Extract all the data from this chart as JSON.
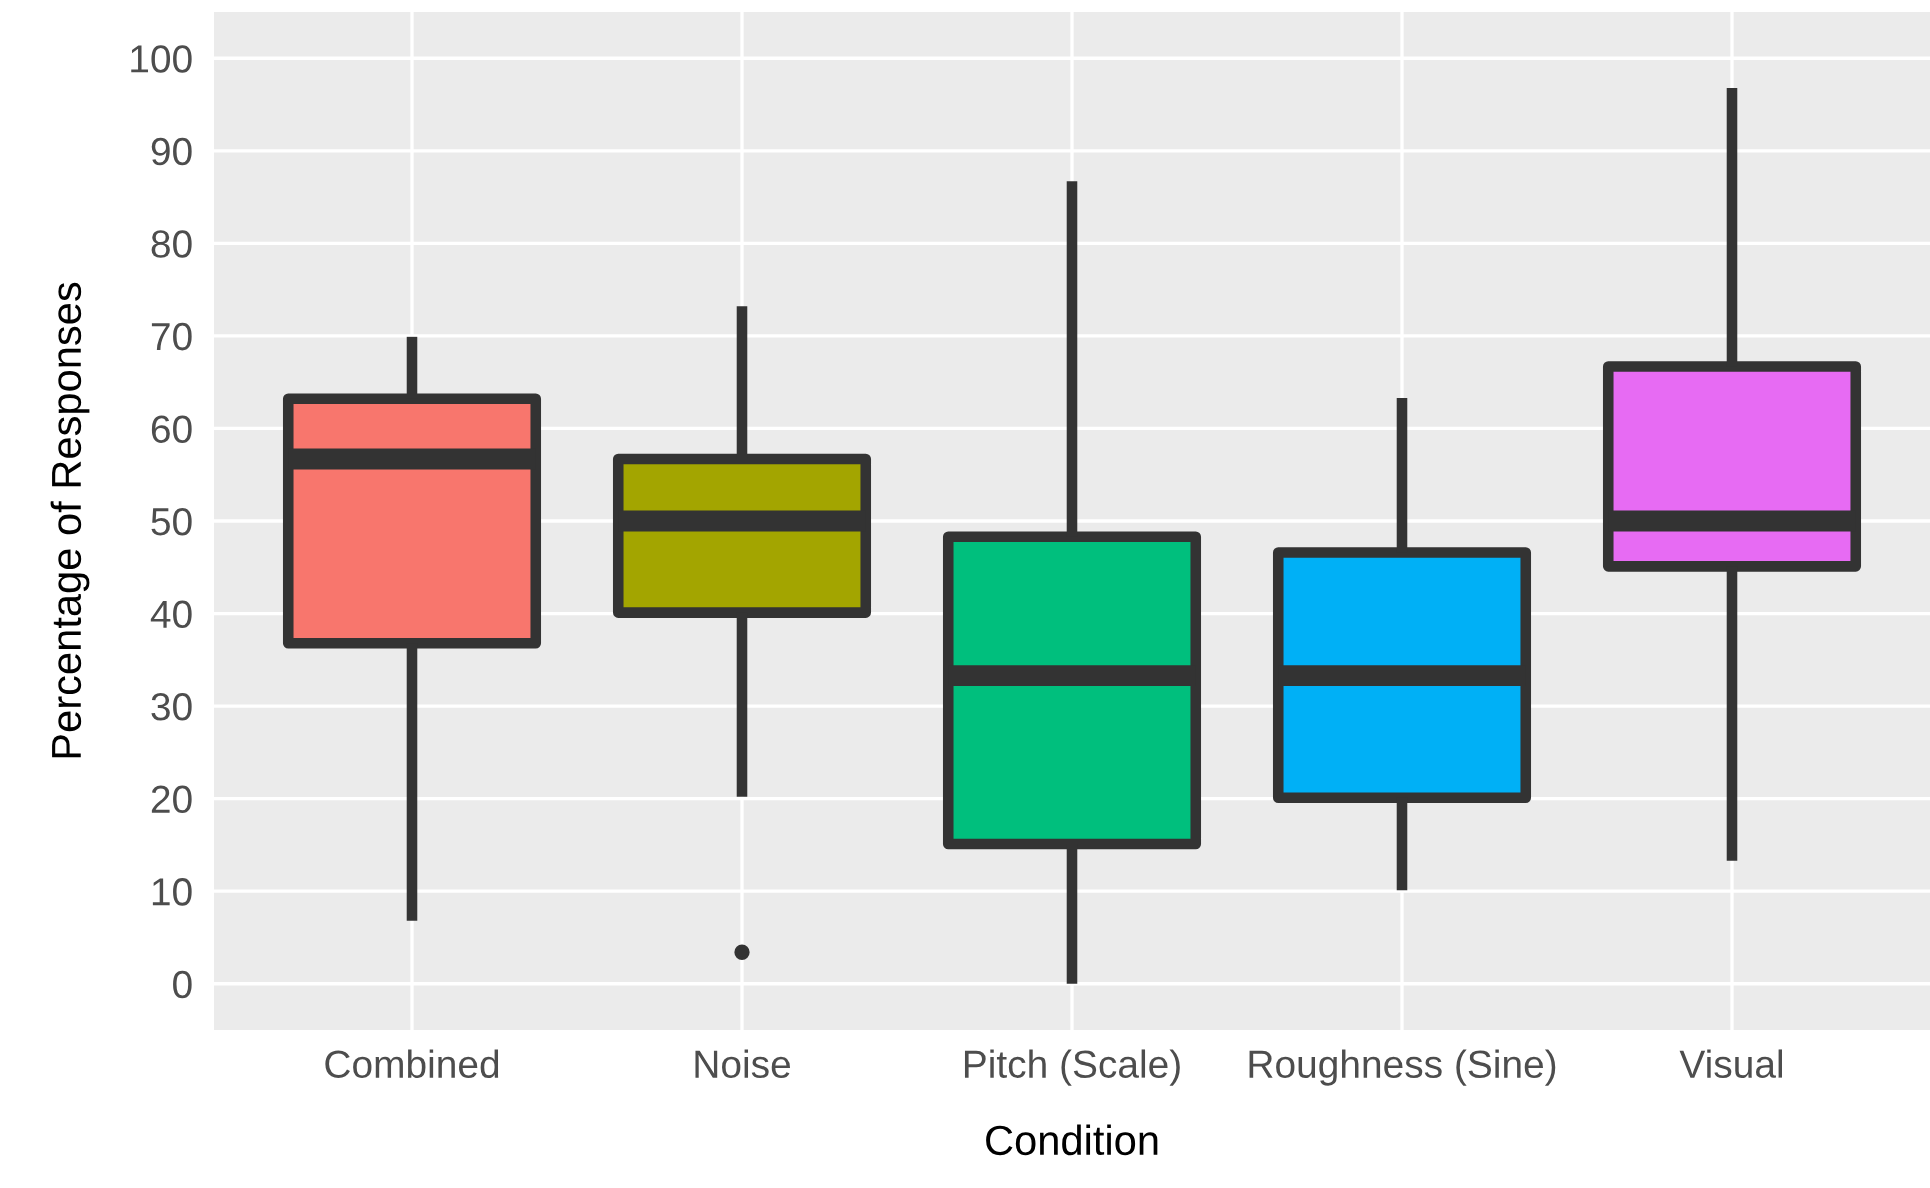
{
  "chart_data": {
    "type": "box",
    "xlabel": "Condition",
    "ylabel": "Percentage of Responses",
    "categories": [
      "Combined",
      "Noise",
      "Pitch (Scale)",
      "Roughness (Sine)",
      "Visual"
    ],
    "colors": [
      "#f8766d",
      "#a3a500",
      "#00bf7d",
      "#00b0f6",
      "#e76bf3"
    ],
    "boxes": [
      {
        "low": 6.8,
        "q1": 36.8,
        "median": 56.7,
        "q3": 63.2,
        "high": 69.9
      },
      {
        "low": 20.2,
        "q1": 40.1,
        "median": 50.0,
        "q3": 56.7,
        "high": 73.2,
        "outliers": [
          3.4
        ]
      },
      {
        "low": 0,
        "q1": 15.1,
        "median": 33.3,
        "q3": 48.3,
        "high": 86.7
      },
      {
        "low": 10.1,
        "q1": 20.1,
        "median": 33.3,
        "q3": 46.6,
        "high": 63.3
      },
      {
        "low": 13.3,
        "q1": 45.1,
        "median": 50.0,
        "q3": 66.7,
        "high": 96.8
      }
    ],
    "ylim": [
      -5,
      105
    ],
    "yticks": [
      0,
      10,
      20,
      30,
      40,
      50,
      60,
      70,
      80,
      90,
      100
    ],
    "grid": true,
    "legend": false
  }
}
